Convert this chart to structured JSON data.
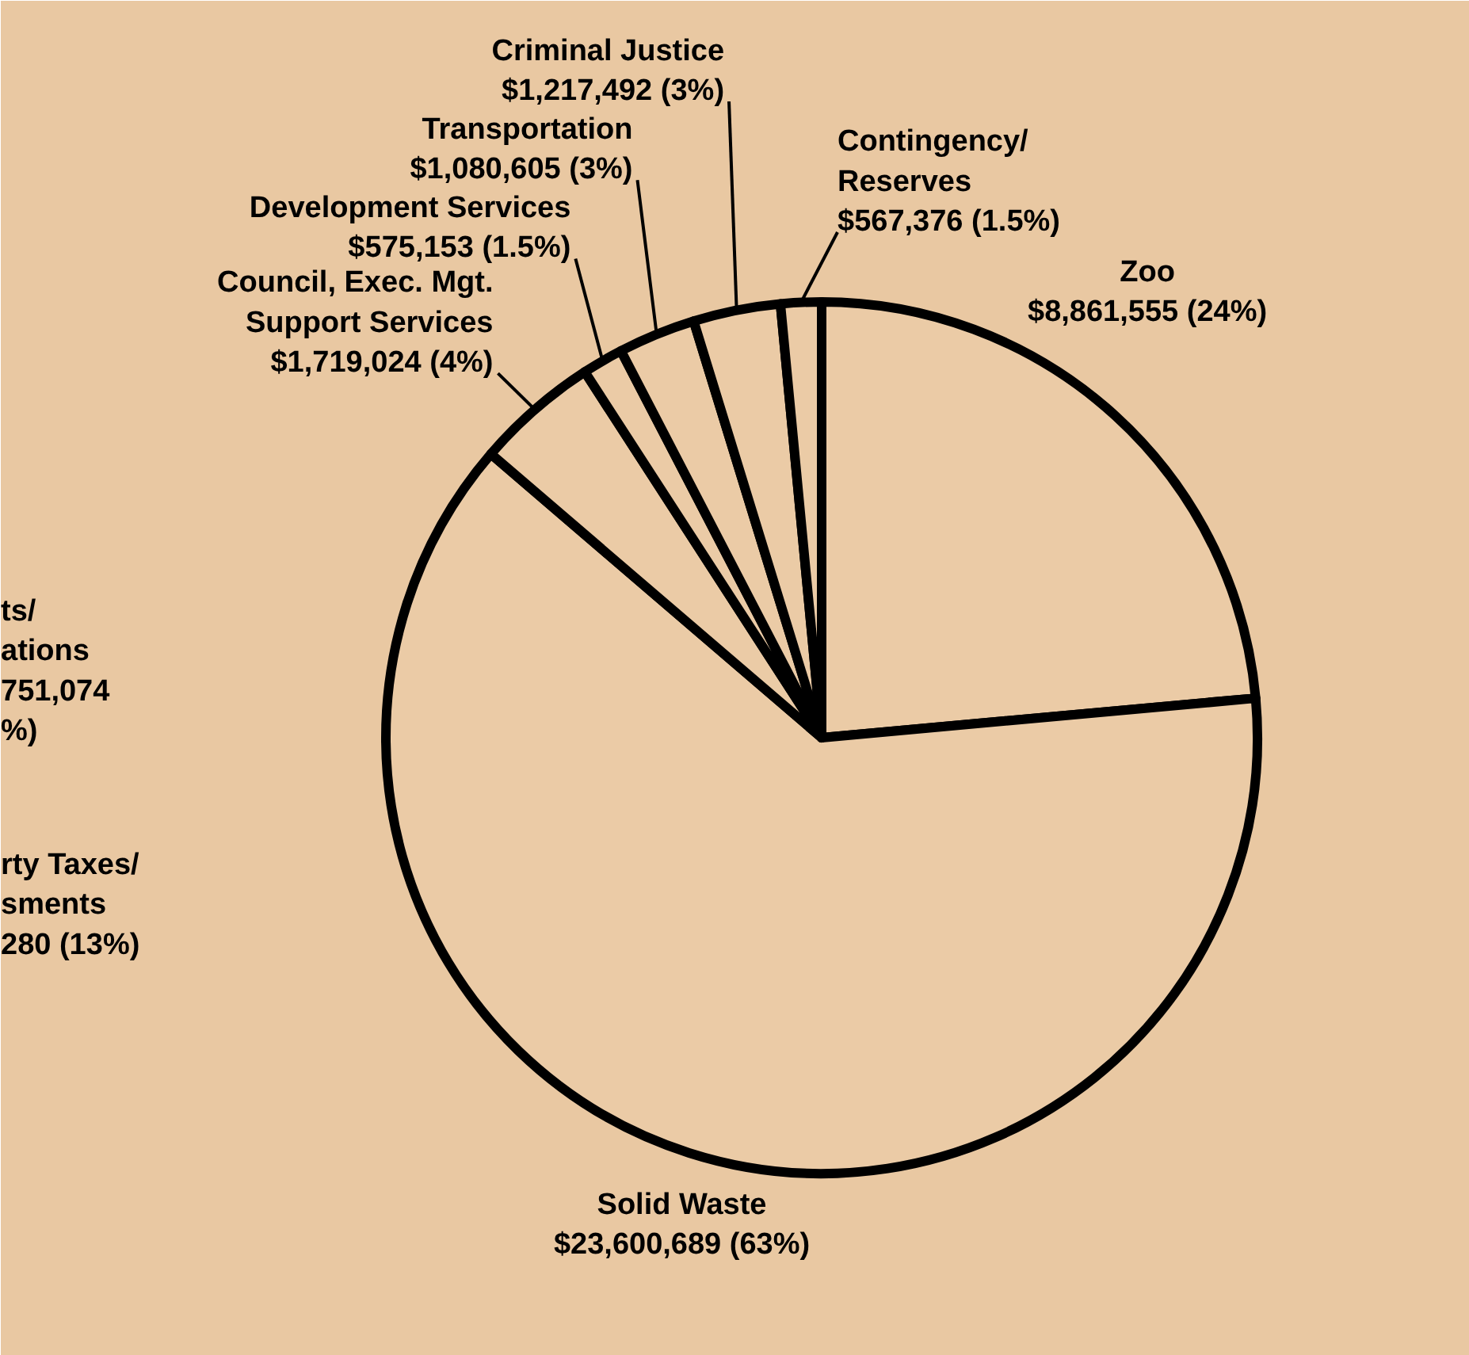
{
  "chart_data": {
    "type": "pie",
    "categories": [
      "Zoo",
      "Solid Waste",
      "Council, Exec. Mgt. Support Services",
      "Development Services",
      "Transportation",
      "Criminal Justice",
      "Contingency/ Reserves"
    ],
    "values": [
      8861555,
      23600689,
      1719024,
      575153,
      1080605,
      1217492,
      567376
    ],
    "value_labels": [
      "$8,861,555 (24%)",
      "$23,600,689 (63%)",
      "$1,719,024 (4%)",
      "$575,153 (1.5%)",
      "$1,080,605 (3%)",
      "$1,217,492 (3%)",
      "$567,376 (1.5%)"
    ],
    "colors": [
      "#ebcba6",
      "#ebcba6",
      "#ebcba6",
      "#ebcba6",
      "#ebcba6",
      "#ebcba6",
      "#ebcba6"
    ],
    "annotations": [
      "ts/\nations\n751,074\n%)",
      "rty Taxes/\nsments\n280 (13%)"
    ]
  }
}
